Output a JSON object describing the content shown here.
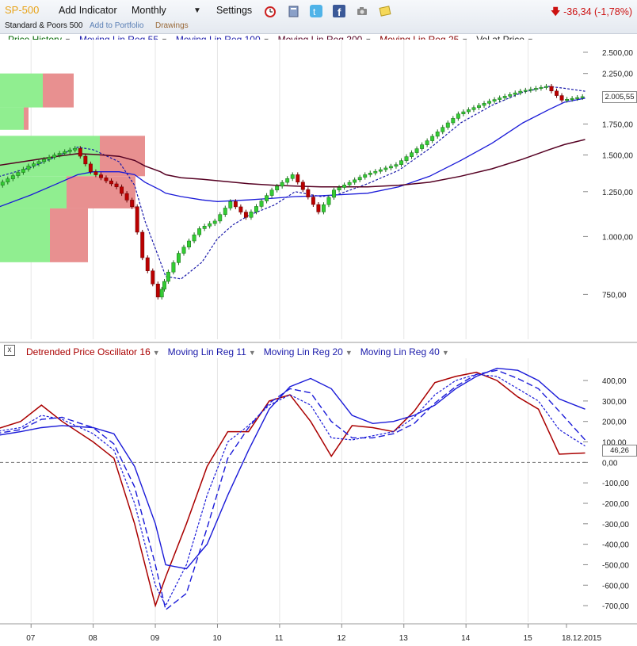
{
  "toolbar": {
    "symbol": "SP-500",
    "add_indicator": "Add Indicator",
    "period": "Monthly",
    "settings": "Settings",
    "subtitle": "Standard & Poors 500",
    "add_to_portfolio": "Add to Portfolio",
    "drawings": "Drawings",
    "change": "-36,34 (-1,78%)",
    "icons": [
      "alarm-clock-icon",
      "notebook-icon",
      "twitter-icon",
      "facebook-icon",
      "camera-icon",
      "note-icon"
    ]
  },
  "price_legend": [
    {
      "label": "Price History",
      "color": "#006600"
    },
    {
      "label": "Moving Lin Reg 55",
      "color": "#1a1aaa"
    },
    {
      "label": "Moving Lin Reg 100",
      "color": "#1a1aaa"
    },
    {
      "label": "Moving Lin Reg 200",
      "color": "#550022"
    },
    {
      "label": "Moving Lin Reg 25",
      "color": "#880000"
    },
    {
      "label": "Vol at Price",
      "color": "#222222"
    }
  ],
  "osc_legend": [
    {
      "label": "Detrended Price Oscillator 16",
      "color": "#aa0000"
    },
    {
      "label": "Moving Lin Reg 11",
      "color": "#1a1aaa"
    },
    {
      "label": "Moving Lin Reg 20",
      "color": "#1a1aaa"
    },
    {
      "label": "Moving Lin Reg 40",
      "color": "#1a1aaa"
    }
  ],
  "price_axis": [
    "2.500,00",
    "2.250,00",
    "1.750,00",
    "1.500,00",
    "1.250,00",
    "1.000,00",
    "750,00"
  ],
  "price_last": "2.005,55",
  "osc_axis": [
    "400,00",
    "300,00",
    "200,00",
    "100,00",
    "0,00",
    "-100,00",
    "-200,00",
    "-300,00",
    "-400,00",
    "-500,00",
    "-600,00",
    "-700,00"
  ],
  "osc_last": "46,26",
  "x_labels": [
    "07",
    "08",
    "09",
    "10",
    "11",
    "12",
    "13",
    "14",
    "15",
    "18.12.2015"
  ],
  "colors": {
    "up": "#33cc33",
    "down": "#bb0000",
    "vap_green": "#90ee90",
    "vap_red": "#e89090"
  },
  "chart_data": [
    {
      "type": "line",
      "title": "SP-500 Monthly",
      "y_scale": "log",
      "ylim": [
        600,
        2600
      ],
      "x": [
        "2006-06",
        "2007-01",
        "2007-06",
        "2007-10",
        "2008-01",
        "2008-06",
        "2008-09",
        "2008-11",
        "2009-02",
        "2009-03",
        "2009-06",
        "2009-10",
        "2010-01",
        "2010-04",
        "2010-07",
        "2010-12",
        "2011-04",
        "2011-09",
        "2011-12",
        "2012-06",
        "2012-12",
        "2013-06",
        "2013-12",
        "2014-06",
        "2014-12",
        "2015-05",
        "2015-08",
        "2015-12"
      ],
      "series": [
        {
          "name": "Price History",
          "values": [
            1270,
            1420,
            1500,
            1550,
            1380,
            1280,
            1160,
            900,
            740,
            800,
            920,
            1040,
            1080,
            1190,
            1100,
            1260,
            1360,
            1130,
            1260,
            1360,
            1430,
            1610,
            1840,
            1960,
            2060,
            2110,
            1970,
            2005
          ]
        },
        {
          "name": "Moving Lin Reg 25",
          "values": [
            1340,
            1410,
            1490,
            1560,
            1540,
            1450,
            1290,
            1080,
            880,
            820,
            810,
            880,
            990,
            1060,
            1110,
            1170,
            1250,
            1220,
            1230,
            1300,
            1390,
            1550,
            1760,
            1920,
            2050,
            2110,
            2090,
            2060
          ]
        },
        {
          "name": "Moving Lin Reg 55",
          "values": [
            1150,
            1230,
            1300,
            1360,
            1380,
            1380,
            1360,
            1310,
            1260,
            1240,
            1220,
            1200,
            1190,
            1195,
            1200,
            1210,
            1220,
            1225,
            1230,
            1240,
            1280,
            1350,
            1460,
            1590,
            1760,
            1880,
            1950,
            1990
          ]
        },
        {
          "name": "Moving Lin Reg 200",
          "values": [
            1420,
            1460,
            1490,
            1510,
            1505,
            1490,
            1460,
            1420,
            1380,
            1360,
            1340,
            1330,
            1320,
            1310,
            1300,
            1290,
            1285,
            1280,
            1280,
            1280,
            1290,
            1310,
            1350,
            1400,
            1470,
            1540,
            1580,
            1620
          ]
        }
      ],
      "vol_at_price": [
        {
          "price_band": [
            1900,
            2250
          ],
          "up": 18,
          "down": 13
        },
        {
          "price_band": [
            1700,
            1900
          ],
          "up": 10,
          "down": 2
        },
        {
          "price_band": [
            1350,
            1650
          ],
          "up": 42,
          "down": 19
        },
        {
          "price_band": [
            1150,
            1350
          ],
          "up": 28,
          "down": 29
        },
        {
          "price_band": [
            880,
            1150
          ],
          "up": 21,
          "down": 16
        }
      ]
    },
    {
      "type": "line",
      "title": "Detrended Price Oscillator 16",
      "ylim": [
        -750,
        470
      ],
      "x": [
        "2006-06",
        "2006-11",
        "2007-03",
        "2007-07",
        "2008-01",
        "2008-05",
        "2008-09",
        "2009-01",
        "2009-03",
        "2009-07",
        "2009-11",
        "2010-03",
        "2010-07",
        "2010-11",
        "2011-03",
        "2011-07",
        "2011-11",
        "2012-03",
        "2012-07",
        "2012-11",
        "2013-03",
        "2013-07",
        "2013-11",
        "2014-03",
        "2014-07",
        "2014-11",
        "2015-03",
        "2015-07",
        "2015-12"
      ],
      "series": [
        {
          "name": "Detrended Price Oscillator 16",
          "values": [
            160,
            200,
            280,
            200,
            100,
            20,
            -300,
            -700,
            -560,
            -300,
            -20,
            150,
            150,
            300,
            330,
            200,
            30,
            180,
            170,
            150,
            250,
            390,
            420,
            440,
            400,
            320,
            260,
            40,
            46
          ]
        },
        {
          "name": "Moving Lin Reg 11",
          "values": [
            150,
            170,
            230,
            210,
            140,
            60,
            -200,
            -600,
            -700,
            -500,
            -160,
            100,
            180,
            280,
            330,
            280,
            120,
            110,
            130,
            150,
            220,
            330,
            400,
            430,
            420,
            360,
            300,
            160,
            80
          ]
        },
        {
          "name": "Moving Lin Reg 20",
          "values": [
            140,
            160,
            210,
            220,
            170,
            90,
            -120,
            -500,
            -720,
            -640,
            -320,
            20,
            170,
            290,
            360,
            340,
            200,
            120,
            120,
            140,
            190,
            290,
            370,
            430,
            450,
            410,
            360,
            250,
            110
          ]
        },
        {
          "name": "Moving Lin Reg 40",
          "values": [
            130,
            150,
            170,
            180,
            170,
            140,
            -20,
            -300,
            -500,
            -520,
            -400,
            -160,
            60,
            260,
            370,
            410,
            360,
            230,
            190,
            200,
            230,
            280,
            360,
            420,
            460,
            450,
            400,
            310,
            260
          ]
        }
      ]
    }
  ]
}
